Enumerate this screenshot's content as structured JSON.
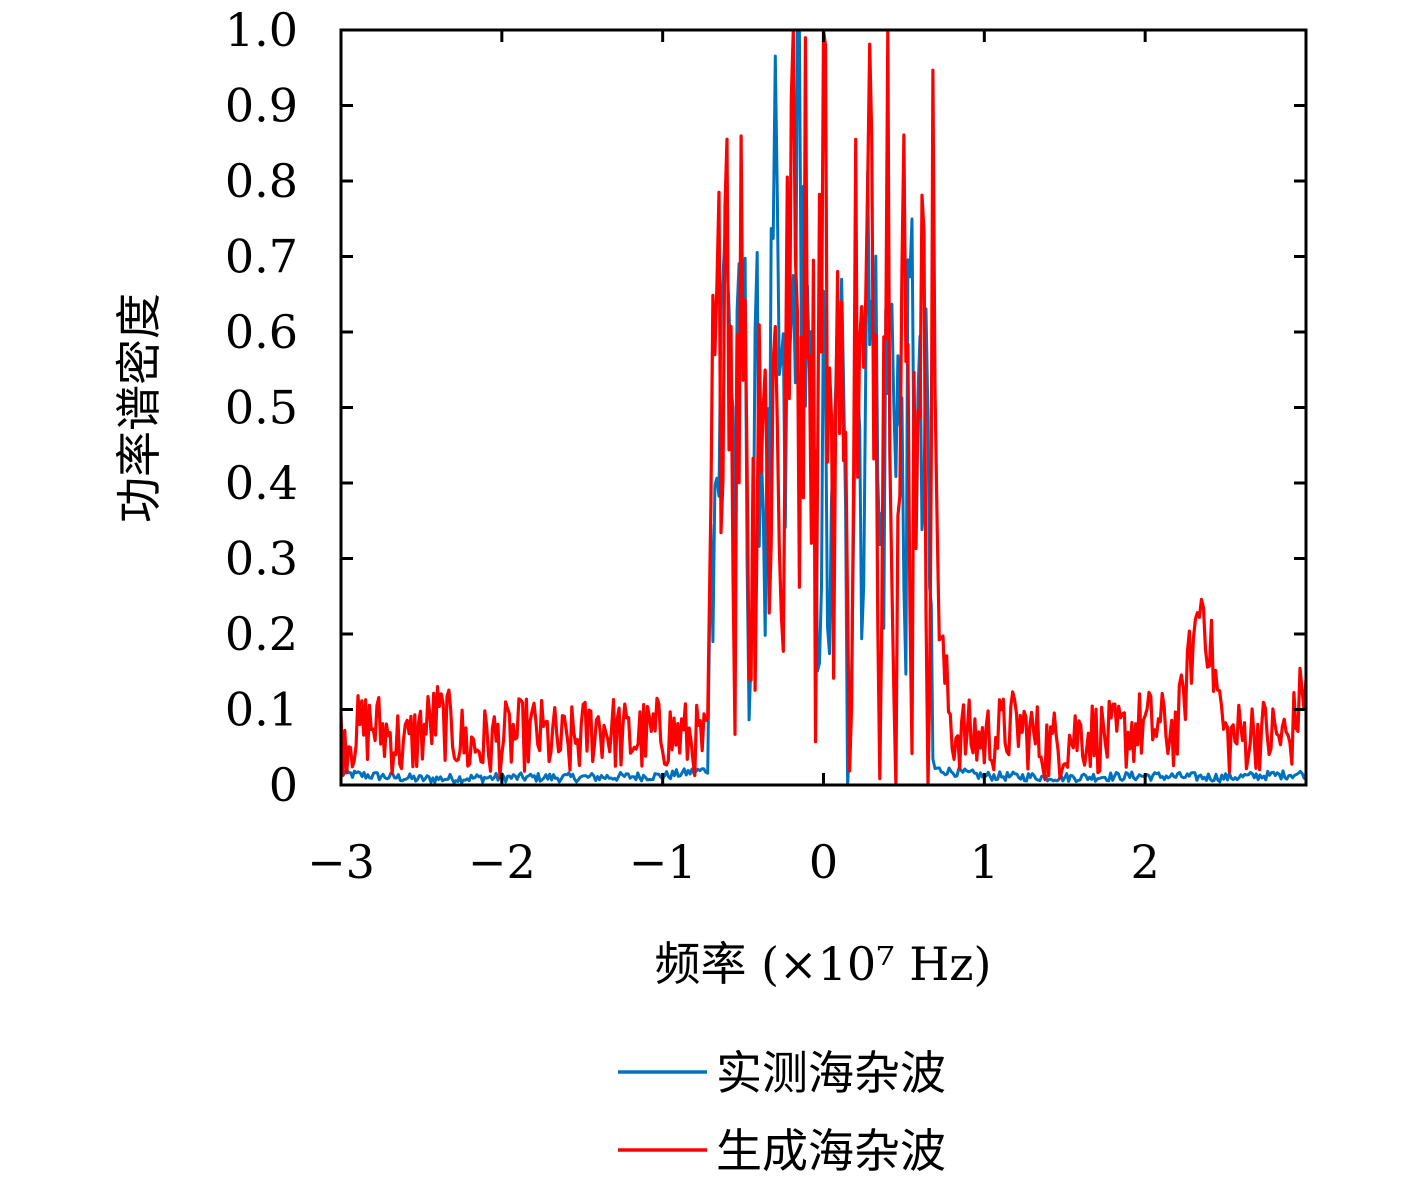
{
  "chart_data": {
    "type": "line",
    "xlabel": "频率 (×10⁷ Hz)",
    "ylabel": "功率谱密度",
    "xlim": [
      -3,
      3
    ],
    "ylim": [
      0,
      1.0
    ],
    "x_ticks": [
      -3,
      -2,
      -1,
      0,
      1,
      2
    ],
    "x_tick_labels": [
      "−3",
      "−2",
      "−1",
      "0",
      "1",
      "2"
    ],
    "y_ticks": [
      0,
      0.1,
      0.2,
      0.3,
      0.4,
      0.5,
      0.6,
      0.7,
      0.8,
      0.9,
      1.0
    ],
    "y_tick_labels": [
      "0",
      "0.1",
      "0.2",
      "0.3",
      "0.4",
      "0.5",
      "0.6",
      "0.7",
      "0.8",
      "0.9",
      "1.0"
    ],
    "grid": false,
    "legend_position": "bottom-center",
    "series": [
      {
        "name": "实测海杂波",
        "color": "#0072BD",
        "x": [
          -3.0,
          -2.5,
          -2.0,
          -1.5,
          -1.0,
          -0.72,
          -0.7,
          -0.65,
          -0.6,
          -0.55,
          -0.5,
          -0.45,
          -0.4,
          -0.35,
          -0.3,
          -0.25,
          -0.2,
          -0.15,
          -0.1,
          -0.05,
          0.0,
          0.05,
          0.1,
          0.15,
          0.2,
          0.25,
          0.3,
          0.35,
          0.4,
          0.45,
          0.5,
          0.55,
          0.6,
          0.65,
          0.68,
          0.72,
          1.0,
          1.5,
          2.0,
          2.5,
          3.0
        ],
        "values": [
          0.015,
          0.008,
          0.01,
          0.01,
          0.012,
          0.02,
          0.35,
          0.45,
          0.77,
          0.35,
          0.6,
          0.22,
          0.55,
          0.3,
          0.72,
          0.4,
          0.55,
          0.93,
          0.5,
          0.25,
          0.45,
          0.2,
          0.64,
          0.1,
          0.6,
          0.35,
          0.87,
          0.25,
          0.55,
          0.6,
          0.3,
          0.6,
          0.38,
          0.4,
          0.02,
          0.02,
          0.012,
          0.01,
          0.012,
          0.01,
          0.015
        ]
      },
      {
        "name": "生成海杂波",
        "color": "#FF0000",
        "x": [
          -3.0,
          -2.8,
          -2.6,
          -2.4,
          -2.2,
          -2.0,
          -1.8,
          -1.6,
          -1.4,
          -1.2,
          -1.0,
          -0.8,
          -0.72,
          -0.7,
          -0.65,
          -0.6,
          -0.55,
          -0.5,
          -0.45,
          -0.4,
          -0.35,
          -0.3,
          -0.25,
          -0.2,
          -0.15,
          -0.1,
          -0.05,
          0.0,
          0.05,
          0.1,
          0.15,
          0.2,
          0.25,
          0.3,
          0.35,
          0.4,
          0.45,
          0.5,
          0.55,
          0.6,
          0.65,
          0.68,
          0.72,
          0.8,
          1.0,
          1.2,
          1.4,
          1.6,
          1.8,
          2.0,
          2.2,
          2.35,
          2.5,
          2.7,
          2.9,
          3.0
        ],
        "values": [
          0.06,
          0.08,
          0.05,
          0.09,
          0.05,
          0.06,
          0.07,
          0.05,
          0.08,
          0.06,
          0.07,
          0.06,
          0.05,
          0.37,
          0.55,
          0.86,
          0.3,
          0.77,
          0.2,
          0.62,
          0.38,
          0.55,
          0.3,
          0.85,
          0.5,
          0.82,
          0.35,
          1.0,
          0.25,
          0.75,
          0.1,
          0.65,
          0.45,
          0.85,
          0.3,
          0.92,
          0.2,
          0.65,
          0.3,
          0.72,
          0.25,
          0.71,
          0.2,
          0.07,
          0.06,
          0.08,
          0.05,
          0.07,
          0.06,
          0.08,
          0.07,
          0.25,
          0.06,
          0.07,
          0.06,
          0.14
        ]
      }
    ]
  }
}
